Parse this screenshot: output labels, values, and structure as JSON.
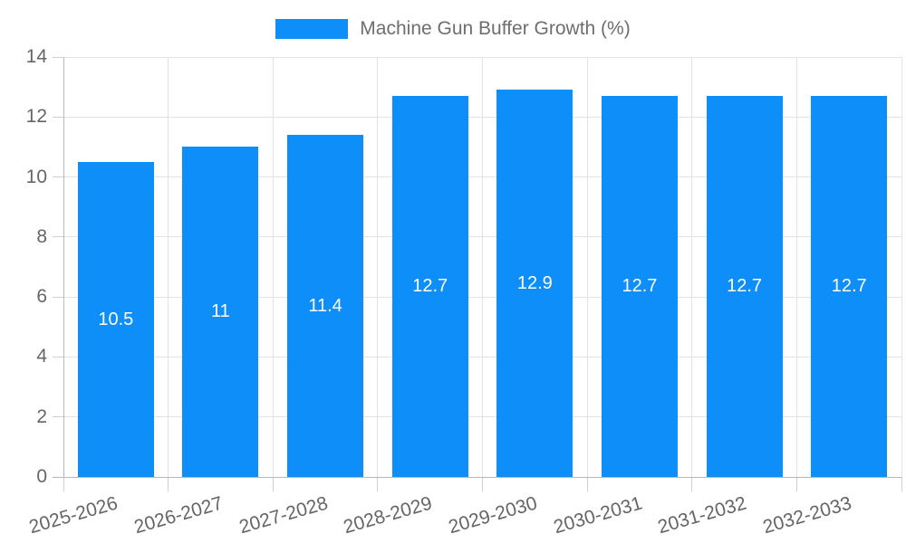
{
  "chart_data": {
    "type": "bar",
    "title": "",
    "series_name": "Machine Gun Buffer Growth (%)",
    "legend_position": "top",
    "categories": [
      "2025-2026",
      "2026-2027",
      "2027-2028",
      "2028-2029",
      "2029-2030",
      "2030-2031",
      "2031-2032",
      "2032-2033"
    ],
    "values": [
      10.5,
      11,
      11.4,
      12.7,
      12.9,
      12.7,
      12.7,
      12.7
    ],
    "bar_labels": [
      "10.5",
      "11",
      "11.4",
      "12.7",
      "12.9",
      "12.7",
      "12.7",
      "12.7"
    ],
    "xlabel": "",
    "ylabel": "",
    "ylim": [
      0,
      14
    ],
    "yticks": [
      0,
      2,
      4,
      6,
      8,
      10,
      12,
      14
    ],
    "grid": true,
    "colors": {
      "bar": "#0d8ef8",
      "bar_label": "#ffffff",
      "gridline": "#e3e3e3",
      "axis_line": "#b8b8b8",
      "tick_mark": "#cfcfcf",
      "tick_label": "#666666",
      "legend_text": "#6e6e6e",
      "background": "#ffffff"
    }
  }
}
